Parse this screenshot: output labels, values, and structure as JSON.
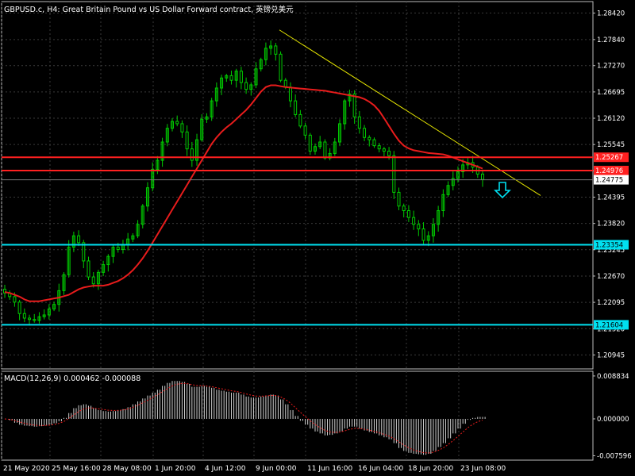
{
  "header": {
    "title": "GBPUSD.c, H4:  Great Britain Pound vs US Dollar Forward contract, 英镑兑美元"
  },
  "macd": {
    "label": "MACD(12,26,9) 0.000462 -0.000088",
    "ticks": [
      "0.008834",
      "0.000000",
      "-0.007596"
    ]
  },
  "colors": {
    "background": "#000000",
    "grid": "#3a3a3a",
    "bull": "#00cc00",
    "ma": "#e81c1c",
    "trendline": "#e6e600",
    "hline_red": "#ff2020",
    "hline_cyan": "#00e0f0",
    "arrow": "#00e0f0",
    "macd_hist": "#d0d0d0",
    "macd_signal": "#e81c1c"
  },
  "icons": {
    "signal_arrow": "down-arrow-icon"
  },
  "chart_data": {
    "type": "candlestick",
    "symbol": "GBPUSD.c",
    "timeframe": "H4",
    "ylim": [
      1.2064,
      1.2867
    ],
    "y_ticks": [
      "1.28420",
      "1.27840",
      "1.27270",
      "1.26695",
      "1.26120",
      "1.25545",
      "1.24970",
      "1.24395",
      "1.23820",
      "1.23245",
      "1.22670",
      "1.22095",
      "1.21520",
      "1.20945"
    ],
    "x_ticks": [
      "21 May 2020",
      "25 May 16:00",
      "28 May 08:00",
      "1 Jun 20:00",
      "4 Jun 12:00",
      "9 Jun 00:00",
      "11 Jun 16:00",
      "16 Jun 04:00",
      "18 Jun 20:00",
      "23 Jun 08:00"
    ],
    "last_price": "1.24775",
    "price_lines": [
      {
        "value": 1.25267,
        "label": "1.25267",
        "color": "red"
      },
      {
        "value": 1.24976,
        "label": "1.24976",
        "color": "red"
      },
      {
        "value": 1.23354,
        "label": "1.23354",
        "color": "cyan"
      },
      {
        "value": 1.21604,
        "label": "1.21604",
        "color": "cyan"
      }
    ],
    "close_series": [
      1.223,
      1.2222,
      1.221,
      1.2185,
      1.2175,
      1.2172,
      1.217,
      1.2178,
      1.2182,
      1.2195,
      1.2205,
      1.2235,
      1.227,
      1.233,
      1.2355,
      1.234,
      1.23,
      1.2265,
      1.225,
      1.2275,
      1.2292,
      1.231,
      1.233,
      1.2325,
      1.2335,
      1.2348,
      1.2355,
      1.238,
      1.242,
      1.246,
      1.25,
      1.252,
      1.256,
      1.259,
      1.2605,
      1.26,
      1.2582,
      1.2545,
      1.252,
      1.2565,
      1.261,
      1.2615,
      1.265,
      1.2678,
      1.27,
      1.2705,
      1.2695,
      1.2715,
      1.269,
      1.2675,
      1.2685,
      1.272,
      1.274,
      1.2765,
      1.277,
      1.2752,
      1.2695,
      1.268,
      1.265,
      1.262,
      1.2595,
      1.2575,
      1.254,
      1.255,
      1.256,
      1.2525,
      1.2535,
      1.256,
      1.26,
      1.265,
      1.2665,
      1.2615,
      1.259,
      1.257,
      1.2565,
      1.2552,
      1.2545,
      1.254,
      1.253,
      1.245,
      1.242,
      1.241,
      1.2395,
      1.238,
      1.237,
      1.2345,
      1.2355,
      1.238,
      1.241,
      1.2445,
      1.2465,
      1.248,
      1.2495,
      1.251,
      1.2515,
      1.2505,
      1.249,
      1.2478
    ],
    "ma_series": [
      1.2232,
      1.223,
      1.2226,
      1.2222,
      1.2216,
      1.2212,
      1.2212,
      1.2212,
      1.2214,
      1.2216,
      1.2218,
      1.222,
      1.2223,
      1.2226,
      1.2232,
      1.2238,
      1.2242,
      1.2244,
      1.2246,
      1.2246,
      1.2246,
      1.2248,
      1.2252,
      1.2256,
      1.2262,
      1.227,
      1.228,
      1.2292,
      1.2306,
      1.2322,
      1.234,
      1.2358,
      1.2376,
      1.2394,
      1.2412,
      1.243,
      1.2448,
      1.2466,
      1.2484,
      1.2502,
      1.252,
      1.2538,
      1.2556,
      1.257,
      1.2582,
      1.2592,
      1.26,
      1.261,
      1.262,
      1.263,
      1.2642,
      1.2656,
      1.267,
      1.268,
      1.2684,
      1.2684,
      1.2682,
      1.268,
      1.2679,
      1.2678,
      1.2677,
      1.2676,
      1.2675,
      1.2674,
      1.2673,
      1.2672,
      1.267,
      1.2668,
      1.2666,
      1.2664,
      1.2662,
      1.266,
      1.2658,
      1.2654,
      1.2648,
      1.264,
      1.2628,
      1.2612,
      1.2595,
      1.2578,
      1.2563,
      1.2552,
      1.2546,
      1.2542,
      1.254,
      1.2538,
      1.2536,
      1.2535,
      1.2534,
      1.2533,
      1.253,
      1.2526,
      1.2522,
      1.2518,
      1.2514,
      1.251,
      1.2506,
      1.2502
    ],
    "macd_hist": [
      0.0,
      -0.0003,
      -0.0008,
      -0.0012,
      -0.0014,
      -0.0015,
      -0.0016,
      -0.0015,
      -0.0014,
      -0.0012,
      -0.0009,
      -0.0005,
      0.0002,
      0.0012,
      0.0022,
      0.0028,
      0.003,
      0.0027,
      0.0022,
      0.0018,
      0.0016,
      0.0015,
      0.0016,
      0.0018,
      0.002,
      0.0024,
      0.003,
      0.0036,
      0.0042,
      0.0048,
      0.0054,
      0.006,
      0.0068,
      0.0074,
      0.0078,
      0.0078,
      0.0076,
      0.0072,
      0.0066,
      0.0066,
      0.0068,
      0.0066,
      0.0064,
      0.006,
      0.0058,
      0.0056,
      0.0054,
      0.0054,
      0.005,
      0.0046,
      0.0044,
      0.0044,
      0.0046,
      0.0048,
      0.005,
      0.0048,
      0.004,
      0.003,
      0.0018,
      0.0006,
      -0.0004,
      -0.0012,
      -0.002,
      -0.0026,
      -0.003,
      -0.0034,
      -0.0033,
      -0.003,
      -0.0026,
      -0.002,
      -0.0016,
      -0.0016,
      -0.002,
      -0.0024,
      -0.0027,
      -0.003,
      -0.0034,
      -0.0038,
      -0.0042,
      -0.005,
      -0.006,
      -0.0066,
      -0.007,
      -0.0072,
      -0.0073,
      -0.0074,
      -0.0072,
      -0.0066,
      -0.0058,
      -0.005,
      -0.004,
      -0.003,
      -0.002,
      -0.001,
      -0.0002,
      0.0002,
      0.0004,
      0.0004
    ],
    "macd_ylim": [
      -0.0085,
      0.0098
    ]
  }
}
